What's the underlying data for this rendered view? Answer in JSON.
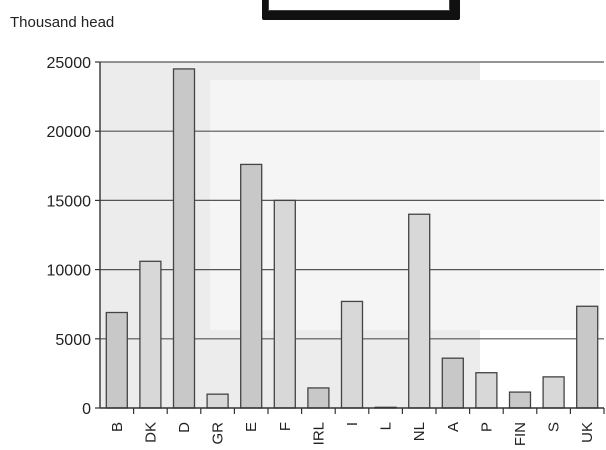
{
  "chart_data": {
    "type": "bar",
    "title": "",
    "ylabel": "Thousand head",
    "xlabel": "",
    "categories": [
      "B",
      "DK",
      "D",
      "GR",
      "E",
      "F",
      "IRL",
      "I",
      "L",
      "NL",
      "A",
      "P",
      "FIN",
      "S",
      "UK"
    ],
    "values": [
      6900,
      10600,
      24500,
      1000,
      17600,
      15000,
      1450,
      7700,
      50,
      14000,
      3600,
      2550,
      1150,
      2250,
      7350
    ],
    "yticks": [
      0,
      5000,
      10000,
      15000,
      20000,
      25000
    ],
    "ylim": [
      0,
      25000
    ],
    "grid": true,
    "legend": "top-center",
    "colors": {
      "bar_fill": "#c8c8c8",
      "bar_fill_alt": "#d8d8d8",
      "bar_stroke": "#444444",
      "axis": "#333333",
      "grid": "#555555",
      "panel_shade": "#ececec"
    }
  }
}
